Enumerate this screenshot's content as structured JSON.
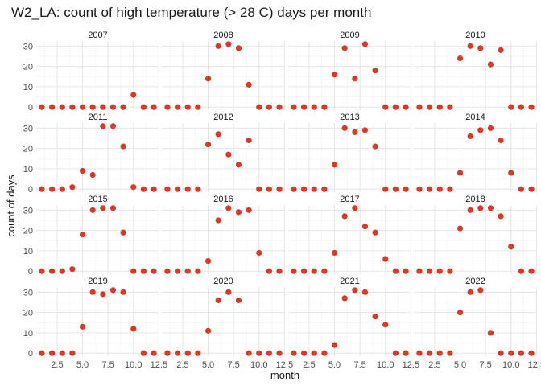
{
  "chart_data": {
    "type": "scatter",
    "title": "W2_LA: count of high temperature (> 28 C) days per month",
    "xlabel": "month",
    "ylabel": "count of days",
    "xlim": [
      0.45,
      12.55
    ],
    "ylim": [
      -1.5,
      32.5
    ],
    "x_ticks": [
      2.5,
      5.0,
      7.5,
      10.0,
      12.5
    ],
    "x_tick_labels": [
      "2.5",
      "5.0",
      "7.5",
      "10.0",
      "12.5"
    ],
    "y_ticks": [
      0,
      10,
      20,
      30
    ],
    "y_tick_labels": [
      "0",
      "10",
      "20",
      "30"
    ],
    "grid": true,
    "point_color": "#d63b2a",
    "months": [
      1,
      2,
      3,
      4,
      5,
      6,
      7,
      8,
      9,
      10,
      11,
      12
    ],
    "facets": [
      {
        "label": "2007",
        "values": [
          0,
          0,
          0,
          0,
          0,
          0,
          0,
          0,
          0,
          6,
          0,
          0
        ]
      },
      {
        "label": "2008",
        "values": [
          0,
          0,
          0,
          0,
          14,
          30,
          31,
          29,
          11,
          0,
          0,
          0
        ]
      },
      {
        "label": "2009",
        "values": [
          0,
          0,
          0,
          0,
          16,
          29,
          14,
          31,
          18,
          0,
          0,
          0
        ]
      },
      {
        "label": "2010",
        "values": [
          0,
          0,
          0,
          0,
          24,
          30,
          29,
          21,
          28,
          0,
          0,
          0
        ]
      },
      {
        "label": "2011",
        "values": [
          0,
          0,
          0,
          1,
          9,
          7,
          31,
          31,
          21,
          1,
          0,
          0
        ]
      },
      {
        "label": "2012",
        "values": [
          0,
          0,
          0,
          0,
          22,
          27,
          17,
          12,
          24,
          0,
          0,
          0
        ]
      },
      {
        "label": "2013",
        "values": [
          0,
          0,
          0,
          0,
          12,
          30,
          28,
          29,
          21,
          0,
          0,
          0
        ]
      },
      {
        "label": "2014",
        "values": [
          0,
          0,
          0,
          0,
          8,
          26,
          29,
          30,
          24,
          8,
          0,
          0
        ]
      },
      {
        "label": "2015",
        "values": [
          0,
          0,
          0,
          1,
          18,
          30,
          31,
          31,
          19,
          0,
          0,
          0
        ]
      },
      {
        "label": "2016",
        "values": [
          0,
          0,
          0,
          0,
          5,
          25,
          31,
          29,
          30,
          9,
          0,
          0
        ]
      },
      {
        "label": "2017",
        "values": [
          0,
          0,
          0,
          0,
          9,
          27,
          31,
          22,
          19,
          6,
          0,
          0
        ]
      },
      {
        "label": "2018",
        "values": [
          0,
          0,
          0,
          0,
          21,
          30,
          31,
          31,
          27,
          12,
          0,
          0
        ]
      },
      {
        "label": "2019",
        "values": [
          0,
          0,
          0,
          0,
          13,
          30,
          29,
          31,
          30,
          12,
          0,
          0
        ]
      },
      {
        "label": "2020",
        "values": [
          0,
          0,
          0,
          0,
          11,
          26,
          30,
          26,
          0,
          0,
          0,
          0
        ]
      },
      {
        "label": "2021",
        "values": [
          0,
          0,
          0,
          0,
          4,
          27,
          31,
          30,
          18,
          14,
          0,
          0
        ]
      },
      {
        "label": "2022",
        "values": [
          0,
          0,
          0,
          0,
          20,
          30,
          31,
          10,
          0,
          0,
          0,
          0
        ]
      }
    ]
  }
}
